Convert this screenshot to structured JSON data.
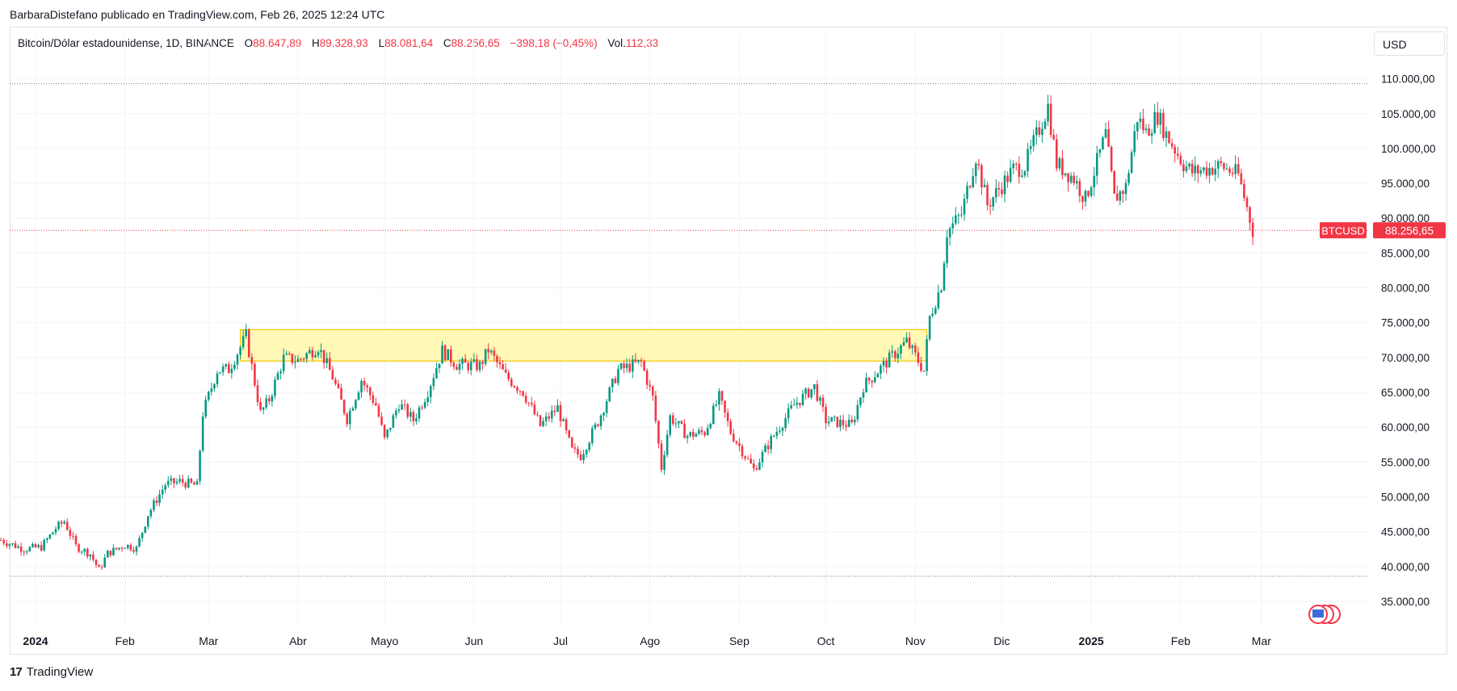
{
  "caption": "BarbaraDistefano publicado en TradingView.com, Feb 26, 2025 12:24 UTC",
  "legend": {
    "symbol": "Bitcoin/Dólar estadounidense, 1D, BINANCE",
    "open_label": "O",
    "open": "88.647,89",
    "high_label": "H",
    "high": "89.328,93",
    "low_label": "L",
    "low": "88.081,64",
    "close_label": "C",
    "close": "88.256,65",
    "change": "−398,18 (−0,45%)",
    "vol_label": "Vol.",
    "vol": "112,33"
  },
  "currency": "USD",
  "footer_brand": "TradingView",
  "footer_mark": "17",
  "chart_data": {
    "type": "candlestick",
    "symbol": "BTCUSD",
    "last_price_label": "88.256,65",
    "last_price": 88256.65,
    "ylim": [
      30000,
      113000
    ],
    "yticks": [
      35000,
      40000,
      45000,
      50000,
      55000,
      60000,
      65000,
      70000,
      75000,
      80000,
      85000,
      90000,
      95000,
      100000,
      105000,
      110000
    ],
    "ytick_labels": [
      "35.000,00",
      "40.000,00",
      "45.000,00",
      "50.000,00",
      "55.000,00",
      "60.000,00",
      "65.000,00",
      "70.000,00",
      "75.000,00",
      "80.000,00",
      "85.000,00",
      "90.000,00",
      "95.000,00",
      "100.000,00",
      "105.000,00",
      "110.000,00"
    ],
    "x_start_date": "2023-12-20",
    "x_end_date": "2025-03-10",
    "xticks": [
      {
        "date": "2024-01-01",
        "label": "2024",
        "bold": true
      },
      {
        "date": "2024-02-01",
        "label": "Feb"
      },
      {
        "date": "2024-03-01",
        "label": "Mar"
      },
      {
        "date": "2024-04-01",
        "label": "Abr"
      },
      {
        "date": "2024-05-01",
        "label": "Mayo"
      },
      {
        "date": "2024-06-01",
        "label": "Jun"
      },
      {
        "date": "2024-07-01",
        "label": "Jul"
      },
      {
        "date": "2024-08-01",
        "label": "Ago"
      },
      {
        "date": "2024-09-01",
        "label": "Sep"
      },
      {
        "date": "2024-10-01",
        "label": "Oct"
      },
      {
        "date": "2024-11-01",
        "label": "Nov"
      },
      {
        "date": "2024-12-01",
        "label": "Dic"
      },
      {
        "date": "2025-01-01",
        "label": "2025",
        "bold": true
      },
      {
        "date": "2025-02-01",
        "label": "Feb"
      },
      {
        "date": "2025-03-01",
        "label": "Mar"
      }
    ],
    "horizontal_lines": [
      {
        "price": 109300,
        "color": "#787b86",
        "style": "dotted"
      },
      {
        "price": 38600,
        "color": "#787b86",
        "style": "dotted"
      },
      {
        "price": 88256.65,
        "color": "#f23645",
        "style": "dotted"
      }
    ],
    "zone": {
      "start_date": "2024-03-12",
      "end_date": "2024-11-05",
      "low": 69500,
      "high": 74000,
      "fill": "#fff59d",
      "stroke": "#f7c600"
    },
    "colors": {
      "up": "#089981",
      "down": "#f23645"
    },
    "price_path": [
      [
        "2023-12-20",
        43800
      ],
      [
        "2023-12-28",
        42500
      ],
      [
        "2024-01-03",
        42800
      ],
      [
        "2024-01-08",
        45500
      ],
      [
        "2024-01-11",
        46500
      ],
      [
        "2024-01-15",
        42900
      ],
      [
        "2024-01-20",
        41800
      ],
      [
        "2024-01-23",
        39500
      ],
      [
        "2024-01-26",
        41900
      ],
      [
        "2024-02-01",
        43100
      ],
      [
        "2024-02-05",
        42600
      ],
      [
        "2024-02-09",
        47500
      ],
      [
        "2024-02-15",
        51800
      ],
      [
        "2024-02-20",
        52200
      ],
      [
        "2024-02-26",
        51600
      ],
      [
        "2024-02-28",
        62000
      ],
      [
        "2024-03-04",
        68200
      ],
      [
        "2024-03-08",
        68300
      ],
      [
        "2024-03-12",
        71500
      ],
      [
        "2024-03-14",
        73100
      ],
      [
        "2024-03-19",
        62000
      ],
      [
        "2024-03-22",
        64000
      ],
      [
        "2024-03-27",
        69900
      ],
      [
        "2024-04-01",
        69600
      ],
      [
        "2024-04-08",
        71600
      ],
      [
        "2024-04-13",
        67200
      ],
      [
        "2024-04-18",
        61200
      ],
      [
        "2024-04-23",
        66800
      ],
      [
        "2024-04-28",
        63200
      ],
      [
        "2024-05-01",
        58200
      ],
      [
        "2024-05-06",
        63400
      ],
      [
        "2024-05-11",
        61000
      ],
      [
        "2024-05-16",
        65200
      ],
      [
        "2024-05-21",
        71000
      ],
      [
        "2024-05-26",
        69000
      ],
      [
        "2024-06-03",
        68800
      ],
      [
        "2024-06-06",
        71100
      ],
      [
        "2024-06-12",
        67300
      ],
      [
        "2024-06-18",
        65100
      ],
      [
        "2024-06-24",
        60200
      ],
      [
        "2024-06-30",
        62800
      ],
      [
        "2024-07-05",
        56600
      ],
      [
        "2024-07-08",
        55900
      ],
      [
        "2024-07-14",
        60800
      ],
      [
        "2024-07-21",
        68200
      ],
      [
        "2024-07-29",
        69300
      ],
      [
        "2024-08-02",
        64200
      ],
      [
        "2024-08-05",
        54200
      ],
      [
        "2024-08-08",
        61500
      ],
      [
        "2024-08-14",
        58800
      ],
      [
        "2024-08-20",
        59300
      ],
      [
        "2024-08-25",
        64300
      ],
      [
        "2024-08-29",
        59300
      ],
      [
        "2024-09-06",
        53900
      ],
      [
        "2024-09-12",
        58200
      ],
      [
        "2024-09-20",
        63200
      ],
      [
        "2024-09-27",
        65800
      ],
      [
        "2024-10-01",
        61000
      ],
      [
        "2024-10-10",
        60300
      ],
      [
        "2024-10-14",
        65900
      ],
      [
        "2024-10-20",
        68500
      ],
      [
        "2024-10-29",
        72300
      ],
      [
        "2024-11-04",
        68100
      ],
      [
        "2024-11-06",
        75800
      ],
      [
        "2024-11-10",
        80500
      ],
      [
        "2024-11-12",
        88000
      ],
      [
        "2024-11-17",
        90600
      ],
      [
        "2024-11-22",
        98900
      ],
      [
        "2024-11-26",
        91900
      ],
      [
        "2024-12-05",
        97000
      ],
      [
        "2024-12-09",
        97500
      ],
      [
        "2024-12-17",
        106100
      ],
      [
        "2024-12-20",
        97800
      ],
      [
        "2024-12-26",
        95700
      ],
      [
        "2024-12-30",
        92700
      ],
      [
        "2025-01-06",
        102000
      ],
      [
        "2025-01-09",
        92800
      ],
      [
        "2025-01-13",
        94500
      ],
      [
        "2025-01-17",
        104500
      ],
      [
        "2025-01-20",
        102300
      ],
      [
        "2025-01-24",
        104800
      ],
      [
        "2025-01-27",
        102000
      ],
      [
        "2025-02-02",
        97800
      ],
      [
        "2025-02-05",
        96600
      ],
      [
        "2025-02-15",
        97500
      ],
      [
        "2025-02-21",
        96200
      ],
      [
        "2025-02-24",
        91500
      ],
      [
        "2025-02-26",
        88256
      ]
    ]
  }
}
